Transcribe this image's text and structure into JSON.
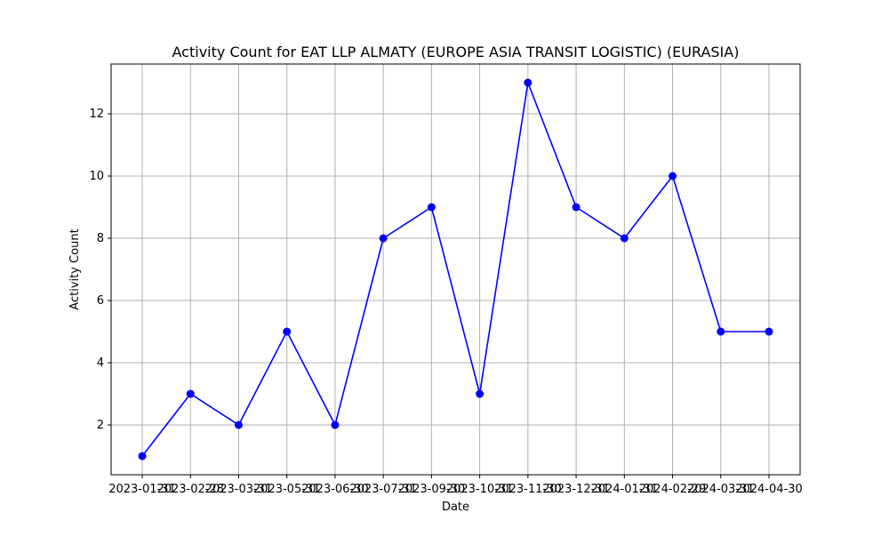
{
  "chart_data": {
    "type": "line",
    "title": "Activity Count for EAT LLP ALMATY (EUROPE ASIA TRANSIT LOGISTIC) (EURASIA)",
    "xlabel": "Date",
    "ylabel": "Activity Count",
    "x": [
      "2023-01-31",
      "2023-02-28",
      "2023-03-31",
      "2023-05-31",
      "2023-06-30",
      "2023-07-31",
      "2023-09-30",
      "2023-10-31",
      "2023-11-30",
      "2023-12-31",
      "2024-01-31",
      "2024-02-29",
      "2024-03-31",
      "2024-04-30"
    ],
    "series": [
      {
        "values": [
          1,
          3,
          2,
          5,
          2,
          8,
          9,
          3,
          13,
          9,
          8,
          10,
          5,
          5
        ],
        "color": "#0000ff",
        "marker": "circle"
      }
    ],
    "ylim": [
      0.4,
      13.6
    ],
    "yticks": [
      2,
      4,
      6,
      8,
      10,
      12
    ],
    "grid": true,
    "x_tick_positions": "one tick per data point, evenly spaced"
  }
}
